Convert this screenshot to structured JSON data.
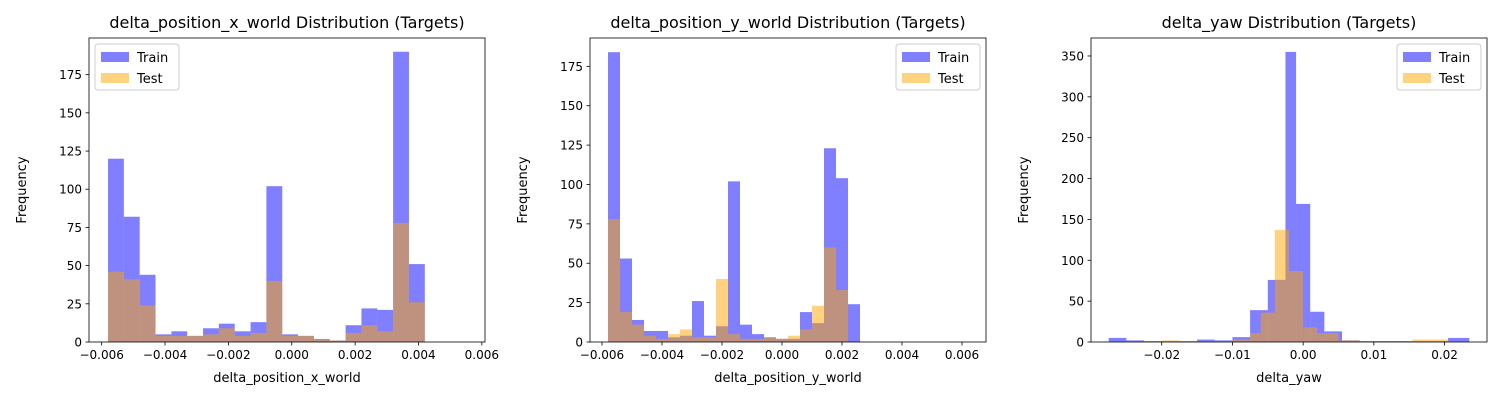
{
  "chart_data": [
    {
      "type": "histogram",
      "title": "delta_position_x_world Distribution (Targets)",
      "xlabel": "delta_position_x_world",
      "ylabel": "Frequency",
      "xlim": [
        -0.0064,
        0.0061
      ],
      "ylim": [
        0,
        199
      ],
      "xticks": [
        -0.006,
        -0.004,
        -0.002,
        0.0,
        0.002,
        0.004,
        0.006
      ],
      "xtick_labels": [
        "−0.006",
        "−0.004",
        "−0.002",
        "0.000",
        "0.002",
        "0.004",
        "0.006"
      ],
      "yticks": [
        0,
        25,
        50,
        75,
        100,
        125,
        150,
        175
      ],
      "ytick_labels": [
        "0",
        "25",
        "50",
        "75",
        "100",
        "125",
        "150",
        "175"
      ],
      "legend": "top-left",
      "series": [
        {
          "name": "Train",
          "color": "#0000ff",
          "opacity": 0.5,
          "bin_edges": [
            -0.0058,
            -0.0053,
            -0.0048,
            -0.0043,
            -0.0038,
            -0.0033,
            -0.0028,
            -0.0023,
            -0.0018,
            -0.0013,
            -0.0008,
            -0.0003,
            0.0002,
            0.0007,
            0.0012,
            0.0017,
            0.0022,
            0.0027,
            0.0032,
            0.0037,
            0.0042,
            0.0047,
            0.0052,
            0.0056
          ],
          "counts": [
            120,
            82,
            44,
            5,
            7,
            4,
            9,
            12,
            7,
            13,
            102,
            5,
            4,
            2,
            1,
            11,
            22,
            21,
            190,
            51,
            0,
            0,
            0
          ]
        },
        {
          "name": "Test",
          "color": "#ffa500",
          "opacity": 0.5,
          "bin_edges": [
            -0.0058,
            -0.0053,
            -0.0048,
            -0.0043,
            -0.0038,
            -0.0033,
            -0.0028,
            -0.0023,
            -0.0018,
            -0.0013,
            -0.0008,
            -0.0003,
            0.0002,
            0.0007,
            0.0012,
            0.0017,
            0.0022,
            0.0027,
            0.0032,
            0.0037,
            0.0042,
            0.0047,
            0.0052,
            0.0056
          ],
          "counts": [
            46,
            41,
            24,
            4,
            4,
            4,
            5,
            9,
            4,
            6,
            40,
            4,
            4,
            2,
            1,
            6,
            11,
            7,
            78,
            26,
            0,
            0,
            0
          ]
        }
      ]
    },
    {
      "type": "histogram",
      "title": "delta_position_y_world Distribution (Targets)",
      "xlabel": "delta_position_y_world",
      "ylabel": "Frequency",
      "xlim": [
        -0.0064,
        0.0068
      ],
      "ylim": [
        0,
        193
      ],
      "xticks": [
        -0.006,
        -0.004,
        -0.002,
        0.0,
        0.002,
        0.004,
        0.006
      ],
      "xtick_labels": [
        "−0.006",
        "−0.004",
        "−0.002",
        "0.000",
        "0.002",
        "0.004",
        "0.006"
      ],
      "yticks": [
        0,
        25,
        50,
        75,
        100,
        125,
        150,
        175
      ],
      "ytick_labels": [
        "0",
        "25",
        "50",
        "75",
        "100",
        "125",
        "150",
        "175"
      ],
      "legend": "top-right",
      "series": [
        {
          "name": "Train",
          "color": "#0000ff",
          "opacity": 0.5,
          "bin_edges": [
            -0.0058,
            -0.0054,
            -0.005,
            -0.0046,
            -0.0042,
            -0.0038,
            -0.0034,
            -0.003,
            -0.0026,
            -0.0022,
            -0.0018,
            -0.0014,
            -0.001,
            -0.0006,
            -0.0002,
            0.0002,
            0.0006,
            0.001,
            0.0014,
            0.0018,
            0.0022,
            0.0026,
            0.003,
            0.0034,
            0.0038,
            0.0042,
            0.0046,
            0.005,
            0.0054,
            0.0058,
            0.0062
          ],
          "counts": [
            184,
            53,
            14,
            7,
            7,
            3,
            4,
            26,
            4,
            10,
            102,
            11,
            5,
            3,
            2,
            2,
            19,
            12,
            123,
            104,
            24,
            0,
            0,
            0,
            0,
            0,
            0,
            0,
            0,
            0
          ]
        },
        {
          "name": "Test",
          "color": "#ffa500",
          "opacity": 0.5,
          "bin_edges": [
            -0.0058,
            -0.0054,
            -0.005,
            -0.0046,
            -0.0042,
            -0.0038,
            -0.0034,
            -0.003,
            -0.0026,
            -0.0022,
            -0.0018,
            -0.0014,
            -0.001,
            -0.0006,
            -0.0002,
            0.0002,
            0.0006,
            0.001,
            0.0014,
            0.0018,
            0.0022,
            0.0026,
            0.003,
            0.0034,
            0.0038,
            0.0042,
            0.0046,
            0.005,
            0.0054,
            0.0058,
            0.0062
          ],
          "counts": [
            78,
            19,
            11,
            4,
            2,
            5,
            8,
            3,
            3,
            40,
            5,
            2,
            2,
            3,
            2,
            4,
            8,
            23,
            60,
            33,
            0,
            0,
            0,
            0,
            0,
            0,
            0,
            0,
            0,
            0
          ]
        }
      ]
    },
    {
      "type": "histogram",
      "title": "delta_yaw Distribution (Targets)",
      "xlabel": "delta_yaw",
      "ylabel": "Frequency",
      "xlim": [
        -0.03,
        0.026
      ],
      "ylim": [
        0,
        372
      ],
      "xticks": [
        -0.02,
        -0.01,
        0.0,
        0.01,
        0.02
      ],
      "xtick_labels": [
        "−0.02",
        "−0.01",
        "0.00",
        "0.01",
        "0.02"
      ],
      "yticks": [
        0,
        50,
        100,
        150,
        200,
        250,
        300,
        350
      ],
      "ytick_labels": [
        "0",
        "50",
        "100",
        "150",
        "200",
        "250",
        "300",
        "350"
      ],
      "legend": "top-right",
      "series": [
        {
          "name": "Train",
          "color": "#0000ff",
          "opacity": 0.5,
          "bin_edges": [
            -0.0275,
            -0.025,
            -0.0225,
            -0.02,
            -0.0175,
            -0.015,
            -0.0125,
            -0.01,
            -0.0075,
            -0.005,
            -0.0025,
            -0.001,
            0.001,
            0.003,
            0.0055,
            0.008,
            0.0105,
            0.013,
            0.0155,
            0.018,
            0.0205,
            0.0235
          ],
          "counts": [
            5,
            2,
            1,
            1,
            1,
            3,
            2,
            6,
            39,
            76,
            355,
            169,
            37,
            13,
            2,
            1,
            1,
            1,
            1,
            1,
            5
          ]
        },
        {
          "name": "Test",
          "color": "#ffa500",
          "opacity": 0.5,
          "bin_edges": [
            -0.0275,
            -0.025,
            -0.0225,
            -0.02,
            -0.0175,
            -0.015,
            -0.0125,
            -0.01,
            -0.0075,
            -0.006,
            -0.004,
            -0.002,
            0.0,
            0.002,
            0.005,
            0.008,
            0.0105,
            0.013,
            0.0155,
            0.018,
            0.0205,
            0.0235
          ],
          "counts": [
            1,
            1,
            1,
            2,
            1,
            1,
            1,
            3,
            11,
            36,
            137,
            87,
            18,
            11,
            2,
            1,
            1,
            1,
            3,
            3,
            1
          ]
        }
      ]
    }
  ]
}
